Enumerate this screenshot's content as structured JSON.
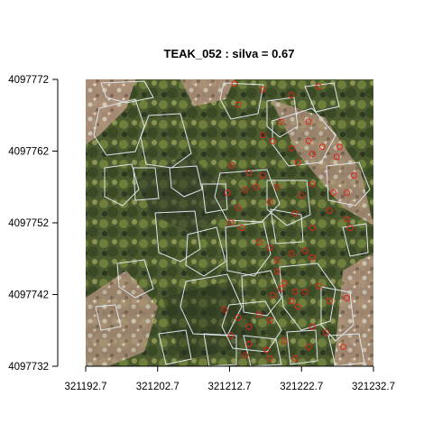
{
  "chart_data": {
    "type": "scatter",
    "title": "TEAK_052 : silva = 0.67",
    "xlabel": "",
    "ylabel": "",
    "xlim": [
      321192.7,
      321232.7
    ],
    "ylim": [
      4097732,
      4097772
    ],
    "x_ticks": [
      321192.7,
      321202.7,
      321212.7,
      321222.7,
      321232.7
    ],
    "x_tick_labels": [
      "321192.7",
      "321202.7",
      "321212.7",
      "321222.7",
      "321232.7"
    ],
    "y_ticks": [
      4097732,
      4097742,
      4097752,
      4097762,
      4097772
    ],
    "y_tick_labels": [
      "4097732",
      "4097742",
      "4097752",
      "4097762",
      "4097772"
    ],
    "grid": false,
    "legend": "none",
    "background": "aerial RGB orthophoto of forest canopy",
    "colors": {
      "crown_outline": "#dfe6ee",
      "tree_top_marker": "#e0241c"
    },
    "series": [
      {
        "marker": "open-circle",
        "x": [
          321213.4,
          321213.9,
          321217.3,
          321219.8,
          321221.3,
          321223.7,
          321225.1,
          321217.3,
          321218.7,
          321221.3,
          321222.2,
          321223.7,
          321224.2,
          321225.6,
          321227.6,
          321228.0,
          321213.0,
          321215.4,
          321216.4,
          321212.4,
          321213.9,
          321212.9,
          321214.4,
          321214.9,
          321217.3,
          321218.3,
          321219.3,
          321222.7,
          321224.2,
          321221.8,
          321224.2,
          321226.6,
          321227.1,
          321229.0,
          321230.0,
          321229.0,
          321229.5,
          321216.8,
          321218.3,
          321219.3,
          321221.3,
          321223.2,
          321224.2,
          321219.3,
          321220.3,
          321221.8,
          321218.7,
          321219.8,
          321221.3,
          321223.2,
          321225.1,
          321212.0,
          321213.9,
          321215.4,
          321216.8,
          321218.3,
          321222.2,
          321224.2,
          321226.6,
          321229.0,
          321212.9,
          321215.4,
          321217.8,
          321220.3,
          321223.7,
          321226.1,
          321228.5,
          321214.9,
          321218.3,
          321221.8
        ],
        "y": [
          4097771.4,
          4097768.5,
          4097770.6,
          4097766.1,
          4097769.8,
          4097766.1,
          4097771.0,
          4097764.2,
          4097763.4,
          4097762.4,
          4097760.4,
          4097763.4,
          4097761.6,
          4097762.6,
          4097761.2,
          4097762.6,
          4097760.0,
          4097759.0,
          4097757.0,
          4097756.2,
          4097754.1,
          4097752.1,
          4097751.3,
          4097756.6,
          4097758.6,
          4097754.9,
          4097757.0,
          4097755.8,
          4097757.4,
          4097753.3,
          4097751.3,
          4097753.7,
          4097756.2,
          4097756.2,
          4097758.6,
          4097752.5,
          4097751.3,
          4097749.3,
          4097748.5,
          4097746.8,
          4097747.7,
          4097748.1,
          4097747.2,
          4097745.2,
          4097743.6,
          4097742.4,
          4097741.9,
          4097742.8,
          4097741.1,
          4097742.4,
          4097743.2,
          4097739.9,
          4097738.8,
          4097737.5,
          4097739.2,
          4097738.4,
          4097740.3,
          4097737.5,
          4097741.1,
          4097741.5,
          4097736.3,
          4097735.1,
          4097734.3,
          4097735.5,
          4097734.7,
          4097736.7,
          4097734.7,
          4097733.5,
          4097733.1,
          4097733.1
        ]
      }
    ]
  }
}
